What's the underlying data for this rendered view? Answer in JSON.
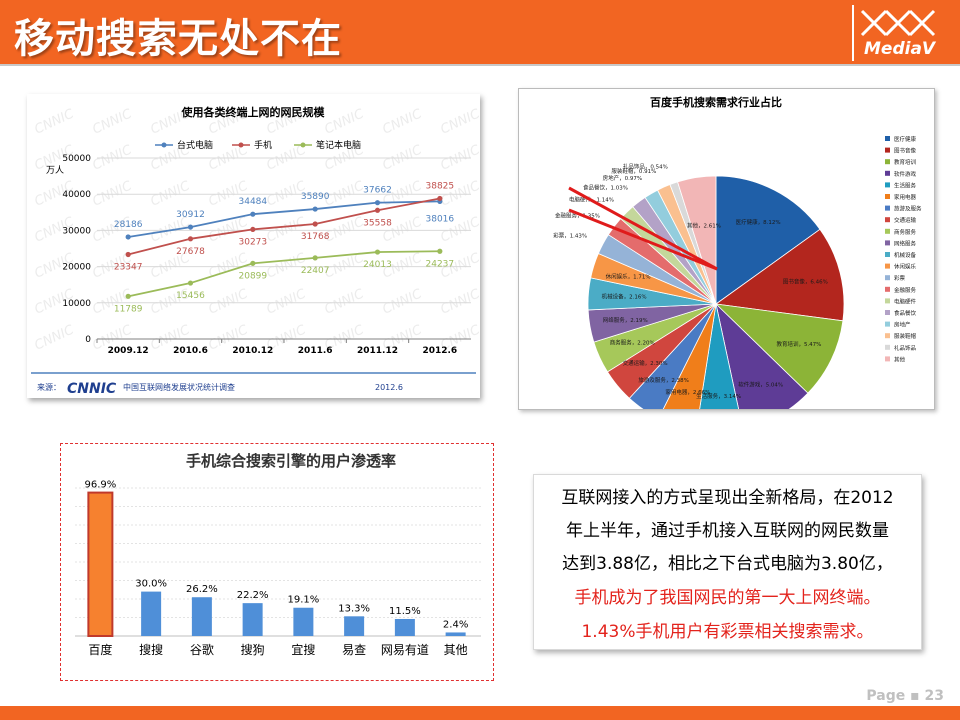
{
  "header": {
    "title": "移动搜索无处不在",
    "logo_text": "MediaV"
  },
  "text_box": {
    "lines": [
      {
        "text": "互联网接入的方式呈现出全新格局，在2012",
        "color": "#000000"
      },
      {
        "text": "年上半年，通过手机接入互联网的网民数量",
        "color": "#000000"
      },
      {
        "text": "达到3.88亿，相比之下台式电脑为3.80亿，",
        "color": "#000000"
      },
      {
        "text": "手机成为了我国网民的第一大上网终端。",
        "color": "#e3231c"
      },
      {
        "text": "1.43%手机用户有彩票相关搜索需求。",
        "color": "#e3231c"
      }
    ]
  },
  "footer": {
    "page_label": "Page ▪ 23"
  },
  "colors": {
    "accent": "#f26522",
    "highlight_red": "#e3231c"
  },
  "chart_data": [
    {
      "type": "line",
      "title": "使用各类终端上网的网民规模",
      "ylabel": "万人",
      "categories": [
        "2009.12",
        "2010.6",
        "2010.12",
        "2011.6",
        "2011.12",
        "2012.6"
      ],
      "ylim": [
        0,
        50000
      ],
      "yticks": [
        0,
        10000,
        20000,
        30000,
        40000,
        50000
      ],
      "grid": true,
      "legend_position": "top",
      "series": [
        {
          "name": "台式电脑",
          "color": "#4f81bd",
          "values": [
            28186,
            30912,
            34484,
            35890,
            37662,
            38016
          ]
        },
        {
          "name": "手机",
          "color": "#c0504d",
          "values": [
            23347,
            27678,
            30273,
            31768,
            35558,
            38825
          ]
        },
        {
          "name": "笔记本电脑",
          "color": "#9bbb59",
          "values": [
            11789,
            15456,
            20899,
            22407,
            24013,
            24237
          ]
        }
      ],
      "source_label": "来源：",
      "source_logo": "CNNIC",
      "source_text": "中国互联网络发展状况统计调查",
      "source_date": "2012.6",
      "watermark": "CNNIC"
    },
    {
      "type": "pie",
      "title": "百度手机搜索需求行业占比",
      "legend_position": "right",
      "slices": [
        {
          "label": "医疗健康",
          "value": 8.12,
          "color": "#1f5fa8"
        },
        {
          "label": "图书音像",
          "value": 6.46,
          "color": "#b3261e"
        },
        {
          "label": "教育培训",
          "value": 5.47,
          "color": "#8cb437"
        },
        {
          "label": "软件游戏",
          "value": 5.04,
          "color": "#5e3c96"
        },
        {
          "label": "生活服务",
          "value": 3.14,
          "color": "#1f9cc0"
        },
        {
          "label": "家用电器",
          "value": 2.66,
          "color": "#f07e1a"
        },
        {
          "label": "旅游及服务",
          "value": 2.38,
          "color": "#4a7bc4"
        },
        {
          "label": "交通运输",
          "value": 2.3,
          "color": "#d0463e"
        },
        {
          "label": "商务服务",
          "value": 2.2,
          "color": "#a6c85a"
        },
        {
          "label": "网络服务",
          "value": 2.19,
          "color": "#8064a2"
        },
        {
          "label": "机械设备",
          "value": 2.16,
          "color": "#4bacc6"
        },
        {
          "label": "休闲娱乐",
          "value": 1.71,
          "color": "#f79646"
        },
        {
          "label": "彩票",
          "value": 1.43,
          "color": "#95b3d7"
        },
        {
          "label": "金融服务",
          "value": 1.35,
          "color": "#e46c6c"
        },
        {
          "label": "电脑硬件",
          "value": 1.14,
          "color": "#c4d79b"
        },
        {
          "label": "食品餐饮",
          "value": 1.03,
          "color": "#b3a2c7"
        },
        {
          "label": "房地产",
          "value": 0.97,
          "color": "#93cddd"
        },
        {
          "label": "服装鞋帽",
          "value": 0.91,
          "color": "#fac090"
        },
        {
          "label": "礼品饰品",
          "value": 0.54,
          "color": "#d9d9d9"
        },
        {
          "label": "其他",
          "value": 2.61,
          "color": "#f2b6b6"
        }
      ],
      "slice_labels": [
        "医疗健康，8.12%",
        "图书音像，6.46%",
        "教育培训，5.47%",
        "软件游戏，5.04%",
        "生活服务，3.14%",
        "家用电器，2.66%",
        "旅游及服务，2.38%",
        "交通运输，2.30%",
        "商务服务，2.20%",
        "网络服务，2.19%",
        "机械设备，2.16%",
        "休闲娱乐，1.71%",
        "彩票，1.43%",
        "金融服务，1.35%",
        "电脑硬件，1.14%",
        "食品餐饮，1.03%",
        "房地产，0.97%",
        "服装鞋帽，0.91%",
        "礼品饰品，0.54%",
        "其他，2.61%"
      ]
    },
    {
      "type": "bar",
      "title": "手机综合搜索引擎的用户渗透率",
      "categories": [
        "百度",
        "搜搜",
        "谷歌",
        "搜狗",
        "宜搜",
        "易查",
        "网易有道",
        "其他"
      ],
      "values": [
        96.9,
        30.0,
        26.2,
        22.2,
        19.1,
        13.3,
        11.5,
        2.4
      ],
      "value_labels": [
        "96.9%",
        "30.0%",
        "26.2%",
        "22.2%",
        "19.1%",
        "13.3%",
        "11.5%",
        "2.4%"
      ],
      "ylim": [
        0,
        100
      ],
      "grid": true,
      "bar_color": "#4f8fd8",
      "highlight_color": "#f6812f"
    }
  ]
}
